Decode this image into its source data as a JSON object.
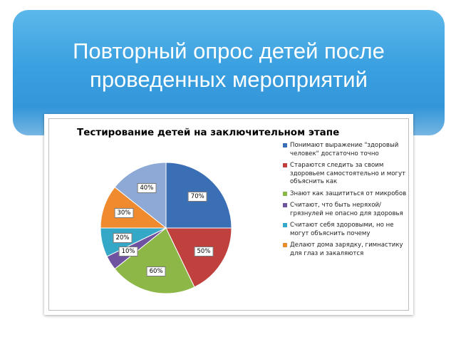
{
  "slide": {
    "title": "Повторный опрос детей после\nпроведенных мероприятий"
  },
  "chart_data": {
    "type": "pie",
    "title": "Тестирование детей на заключительном этапе",
    "legend_position": "right",
    "slices": [
      {
        "label": "Понимают выражение \"здоровый человек\" достаточно точно",
        "value": 70,
        "display": "70%",
        "color": "#3a6fb5"
      },
      {
        "label": "Стараются следить за своим здоровьем самостоятельно и могут объяснить как",
        "value": 50,
        "display": "50%",
        "color": "#c0403d"
      },
      {
        "label": "Знают как защититься от микробов",
        "value": 60,
        "display": "60%",
        "color": "#8db848"
      },
      {
        "label": "Считают, что быть неряхой/грязнулей не опасно для здоровья",
        "value": 10,
        "display": "10%",
        "color": "#6f52a0"
      },
      {
        "label": "Считают себя здоровыми, но не могут объяснить почему",
        "value": 20,
        "display": "20%",
        "color": "#34a8c6"
      },
      {
        "label": "Делают дома зарядку, гимнастику для глаз и закаляются",
        "value": 30,
        "display": "30%",
        "color": "#f08a2e"
      },
      {
        "label": "",
        "value": 40,
        "display": "40%",
        "color": "#8ea9d6"
      }
    ]
  }
}
